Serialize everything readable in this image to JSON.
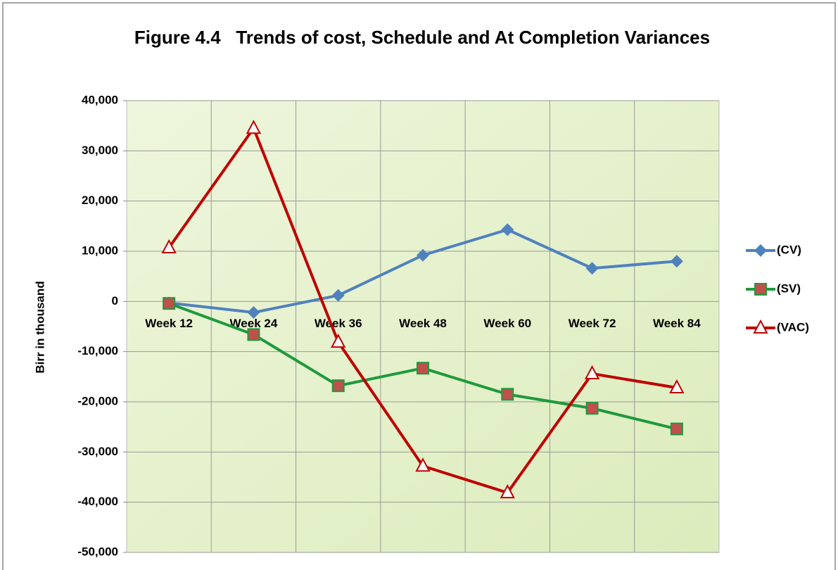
{
  "chart_data": {
    "type": "line",
    "title": "Figure 4.4   Trends of cost, Schedule and At Completion Variances",
    "y_label": "Birr in thousand",
    "categories": [
      "Week 12",
      "Week 24",
      "Week 36",
      "Week 48",
      "Week 60",
      "Week 72",
      "Week 84"
    ],
    "series": [
      {
        "name": "(CV)",
        "color": "#4f81bd",
        "marker": "diamond",
        "values": [
          -300,
          -2200,
          1200,
          9200,
          14300,
          6600,
          8000
        ]
      },
      {
        "name": "(SV)",
        "color": "#1e9a3c",
        "marker": "square",
        "values": [
          -400,
          -6600,
          -16800,
          -13300,
          -18500,
          -21300,
          -25400
        ]
      },
      {
        "name": "(VAC)",
        "color": "#c00000",
        "marker": "triangle",
        "values": [
          10700,
          34500,
          -8100,
          -32800,
          -38100,
          -14400,
          -17200
        ]
      }
    ],
    "ylim": [
      -50000,
      40000
    ],
    "yticks": [
      {
        "value": -50000,
        "label": "-50,000"
      },
      {
        "value": -40000,
        "label": "-40,000"
      },
      {
        "value": -30000,
        "label": "-30,000"
      },
      {
        "value": -20000,
        "label": "-20,000"
      },
      {
        "value": -10000,
        "label": "-10,000"
      },
      0,
      {
        "value": 10000,
        "label": "10,000"
      },
      {
        "value": 20000,
        "label": "20,000"
      },
      {
        "value": 30000,
        "label": "30,000"
      },
      {
        "value": 40000,
        "label": "40,000"
      }
    ],
    "grid": true,
    "legend": "right"
  }
}
